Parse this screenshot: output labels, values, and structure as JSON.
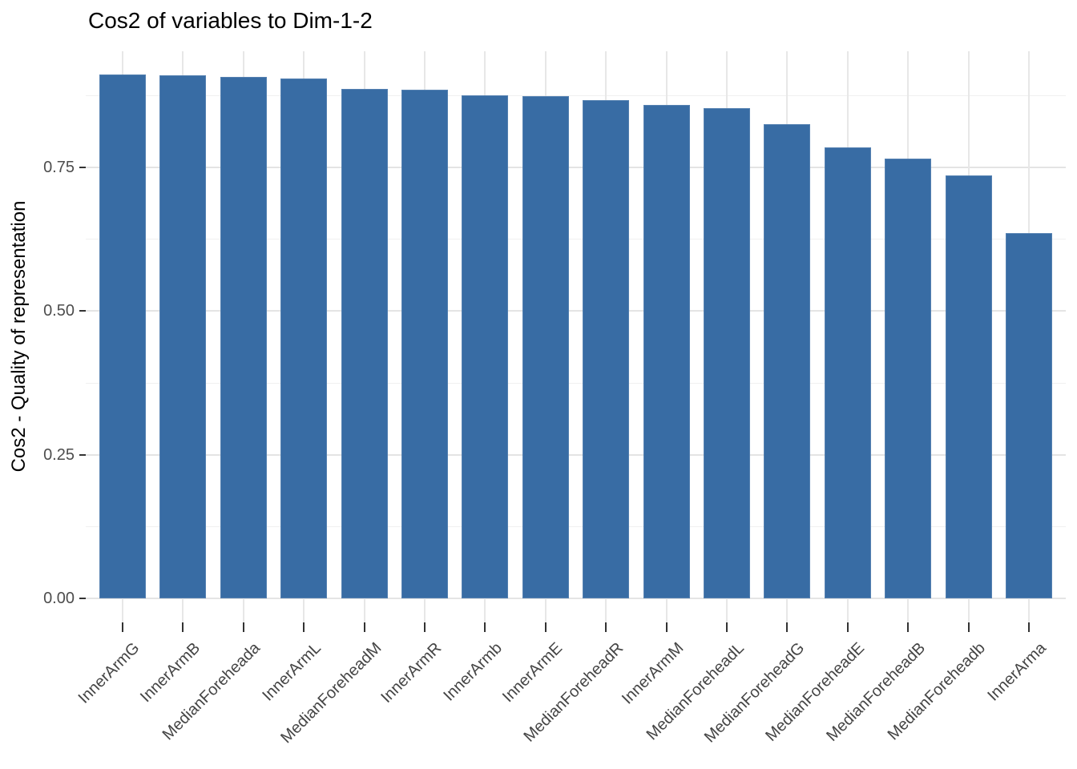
{
  "chart_data": {
    "type": "bar",
    "title": "Cos2 of variables to Dim-1-2",
    "xlabel": "",
    "ylabel": "Cos2 - Quality of representation",
    "categories": [
      "InnerArmG",
      "InnerArmB",
      "MedianForeheada",
      "InnerArmL",
      "MedianForeheadM",
      "InnerArmR",
      "InnerArmb",
      "InnerArmE",
      "MedianForeheadR",
      "InnerArmM",
      "MedianForeheadL",
      "MedianForeheadG",
      "MedianForeheadE",
      "MedianForeheadB",
      "MedianForeheadb",
      "InnerArma"
    ],
    "values": [
      0.912,
      0.91,
      0.908,
      0.905,
      0.886,
      0.885,
      0.876,
      0.874,
      0.867,
      0.859,
      0.853,
      0.826,
      0.785,
      0.765,
      0.736,
      0.636
    ],
    "ylim": [
      -0.045,
      0.951
    ],
    "yticks": [
      0.0,
      0.25,
      0.5,
      0.75
    ],
    "ytick_labels": [
      "0.00",
      "0.25",
      "0.50",
      "0.75"
    ],
    "yticks_minor": [
      0.125,
      0.375,
      0.625,
      0.875
    ],
    "grid": "major and minor horizontal, major vertical at category centers",
    "legend_position": "none",
    "bar_color": "#386CA4",
    "colors": {
      "major_grid": "#e4e4e4",
      "minor_grid": "#f0f0f0",
      "vertical_grid": "#e7e7e7",
      "tick_mark": "#333333",
      "tick_label": "#4d4d4d",
      "title": "#000000",
      "background": "#ffffff"
    }
  }
}
